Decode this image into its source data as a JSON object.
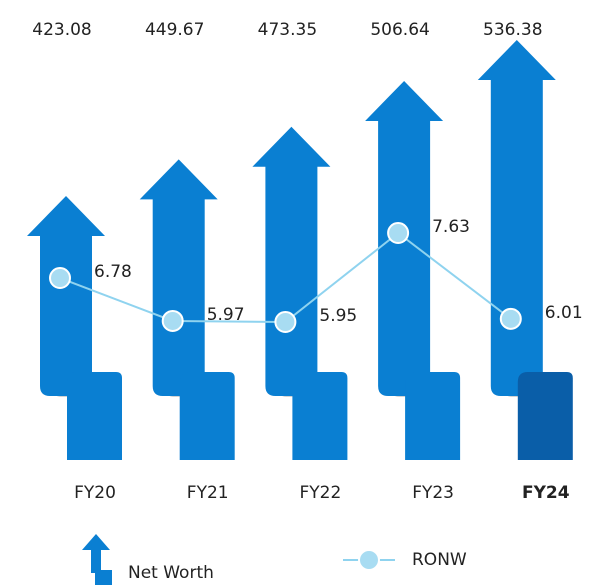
{
  "chart_data": {
    "type": "arrow-bar-line",
    "categories": [
      "FY20",
      "FY21",
      "FY22",
      "FY23",
      "FY24"
    ],
    "highlight_index": 4,
    "highlight_color": "#0a5ea8",
    "series": [
      {
        "name": "Net Worth",
        "color": "#0a7fd2",
        "values": [
          423.08,
          449.67,
          473.35,
          506.64,
          536.38
        ]
      },
      {
        "name": "RONW",
        "color": "#8fd3ef",
        "values": [
          6.78,
          5.97,
          5.95,
          7.63,
          6.01
        ]
      }
    ]
  }
}
